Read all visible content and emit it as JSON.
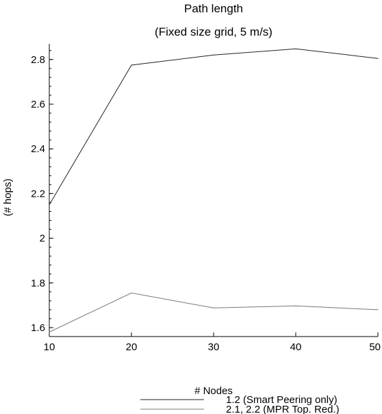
{
  "chart_data": {
    "type": "line",
    "title": "Path length",
    "subtitle": "(Fixed size grid, 5 m/s)",
    "xlabel": "# Nodes",
    "ylabel": "(# hops)",
    "x": [
      10,
      20,
      30,
      40,
      50
    ],
    "xlim": [
      10,
      50
    ],
    "ylim": [
      1.56,
      2.87
    ],
    "x_ticks": [
      "10",
      "20",
      "30",
      "40",
      "50"
    ],
    "y_ticks": [
      "1.6",
      "1.8",
      "2",
      "2.2",
      "2.4",
      "2.6",
      "2.8"
    ],
    "grid": false,
    "legend_position": "bottom-right",
    "series": [
      {
        "name": "1.2 (Smart Peering only)",
        "values": [
          2.15,
          2.775,
          2.82,
          2.848,
          2.805
        ],
        "color": "#222222"
      },
      {
        "name": "2.1, 2.2 (MPR Top. Red.)",
        "values": [
          1.58,
          1.755,
          1.688,
          1.697,
          1.68
        ],
        "color": "#777777"
      }
    ]
  }
}
